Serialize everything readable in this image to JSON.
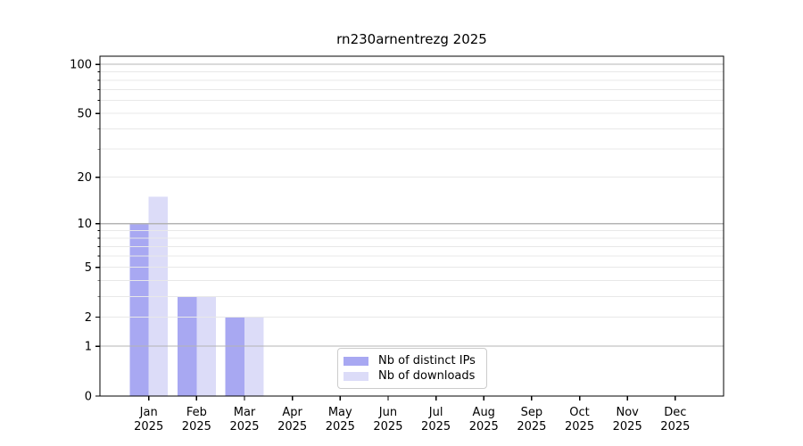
{
  "chart_data": {
    "type": "bar",
    "title": "rn230arnentrezg 2025",
    "categories": [
      "Jan 2025",
      "Feb 2025",
      "Mar 2025",
      "Apr 2025",
      "May 2025",
      "Jun 2025",
      "Jul 2025",
      "Aug 2025",
      "Sep 2025",
      "Oct 2025",
      "Nov 2025",
      "Dec 2025"
    ],
    "series": [
      {
        "name": "Nb of distinct IPs",
        "color": "#a8a8f2",
        "values": [
          10,
          3,
          2,
          0,
          0,
          0,
          0,
          0,
          0,
          0,
          0,
          0
        ]
      },
      {
        "name": "Nb of downloads",
        "color": "#dcdcf8",
        "values": [
          15,
          3,
          2,
          0,
          0,
          0,
          0,
          0,
          0,
          0,
          0,
          0
        ]
      }
    ],
    "yscale": "log1p",
    "ylim": [
      0,
      112
    ],
    "yticks": [
      0,
      1,
      2,
      5,
      10,
      20,
      50,
      100
    ],
    "ygrid_major": [
      1,
      10,
      100
    ],
    "ygrid_minor": [
      2,
      3,
      4,
      5,
      6,
      7,
      8,
      9,
      20,
      30,
      40,
      50,
      60,
      70,
      80,
      90
    ],
    "grid": true,
    "legend_position": "lower center",
    "colors": {
      "grid_major": "#b4b4b4",
      "grid_minor": "#e8e8e8",
      "axis": "#000000",
      "text": "#000000",
      "background": "#ffffff"
    }
  }
}
